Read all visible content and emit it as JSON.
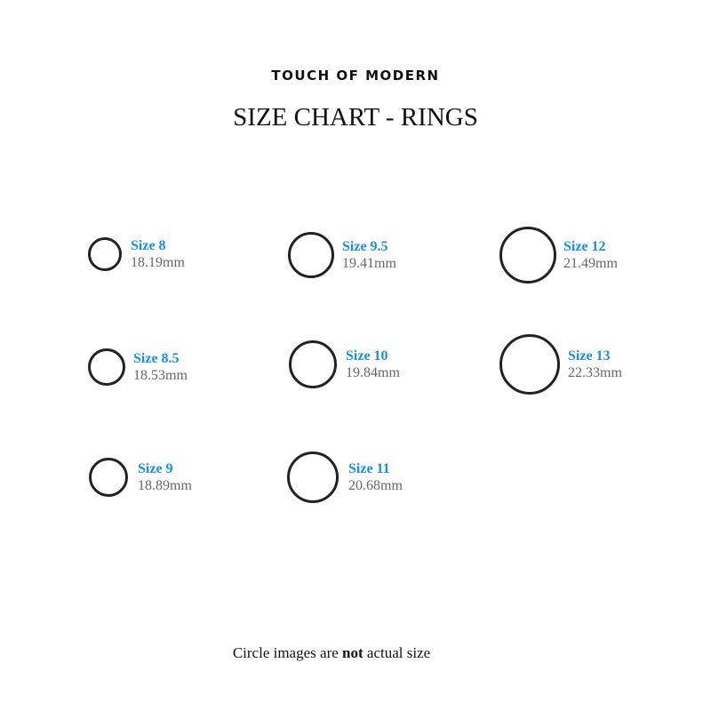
{
  "brand": "TOUCH OF MODERN",
  "title": "SIZE CHART - RINGS",
  "rings": [
    {
      "size": "Size 8",
      "diameter": "18.19mm"
    },
    {
      "size": "Size 8.5",
      "diameter": "18.53mm"
    },
    {
      "size": "Size 9",
      "diameter": "18.89mm"
    },
    {
      "size": "Size 9.5",
      "diameter": "19.41mm"
    },
    {
      "size": "Size 10",
      "diameter": "19.84mm"
    },
    {
      "size": "Size 11",
      "diameter": "20.68mm"
    },
    {
      "size": "Size 12",
      "diameter": "21.49mm"
    },
    {
      "size": "Size 13",
      "diameter": "22.33mm"
    }
  ],
  "footer": {
    "before": "Circle images are ",
    "bold": "not",
    "after": " actual size"
  },
  "colors": {
    "size_label": "#1a8fe0",
    "ring": "#222222"
  }
}
